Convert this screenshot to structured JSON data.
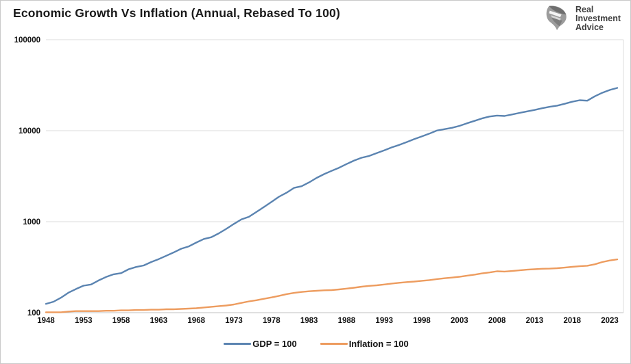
{
  "header": {
    "title": "Economic Growth Vs Inflation (Annual, Rebased To 100)"
  },
  "brand": {
    "lines": [
      "Real",
      "Investment",
      "Advice"
    ],
    "icon": "eagle-icon",
    "text_color": "#3f3f3f",
    "icon_color": "#9c9c9c"
  },
  "colors": {
    "gdp_line": "#5b84b1",
    "inflation_line": "#ed9c5f",
    "gridline": "#dcdcdc",
    "axis_line": "#c2c2c2",
    "tick_text": "#111111"
  },
  "chart_data": {
    "type": "line",
    "title": "Economic Growth Vs Inflation (Annual, Rebased To 100)",
    "xlabel": "",
    "ylabel": "",
    "y_scale": "log",
    "ylim": [
      100,
      100000
    ],
    "y_ticks": [
      100,
      1000,
      10000,
      100000
    ],
    "y_tick_labels": [
      "100",
      "1000",
      "10000",
      "100000"
    ],
    "x_range": [
      1948,
      2024
    ],
    "x_tick_years": [
      1948,
      1953,
      1958,
      1963,
      1968,
      1973,
      1978,
      1983,
      1988,
      1993,
      1998,
      2003,
      2008,
      2013,
      2018,
      2023
    ],
    "grid": "horizontal",
    "legend_position": "bottom",
    "series": [
      {
        "name": "GDP = 100",
        "color": "#5b84b1",
        "x_start": 1948,
        "x_step": 1,
        "values": [
          125,
          132,
          146,
          166,
          182,
          198,
          204,
          226,
          247,
          264,
          272,
          300,
          318,
          330,
          360,
          388,
          422,
          460,
          505,
          535,
          590,
          645,
          675,
          745,
          835,
          945,
          1060,
          1130,
          1280,
          1450,
          1650,
          1880,
          2080,
          2350,
          2450,
          2700,
          3030,
          3330,
          3620,
          3920,
          4300,
          4700,
          5050,
          5280,
          5680,
          6070,
          6550,
          6980,
          7500,
          8090,
          8640,
          9280,
          10030,
          10390,
          10760,
          11290,
          12050,
          12820,
          13640,
          14300,
          14650,
          14500,
          15080,
          15680,
          16300,
          16900,
          17660,
          18310,
          18860,
          19740,
          20800,
          21600,
          21350,
          23850,
          26100,
          28000,
          29500
        ]
      },
      {
        "name": "Inflation = 100",
        "color": "#ed9c5f",
        "x_start": 1948,
        "x_step": 1,
        "values": [
          101,
          101,
          101,
          103,
          104,
          104,
          104,
          104,
          105,
          105,
          106,
          106,
          107,
          107,
          108,
          108,
          109,
          109,
          110,
          111,
          112,
          114,
          116,
          118,
          120,
          123,
          128,
          133,
          137,
          142,
          147,
          153,
          160,
          165,
          169,
          172,
          174,
          176,
          177,
          180,
          184,
          188,
          193,
          197,
          200,
          204,
          209,
          213,
          217,
          220,
          224,
          228,
          234,
          239,
          243,
          248,
          255,
          262,
          270,
          277,
          285,
          283,
          287,
          292,
          297,
          300,
          304,
          305,
          308,
          313,
          319,
          324,
          328,
          340,
          360,
          375,
          385
        ]
      }
    ]
  }
}
